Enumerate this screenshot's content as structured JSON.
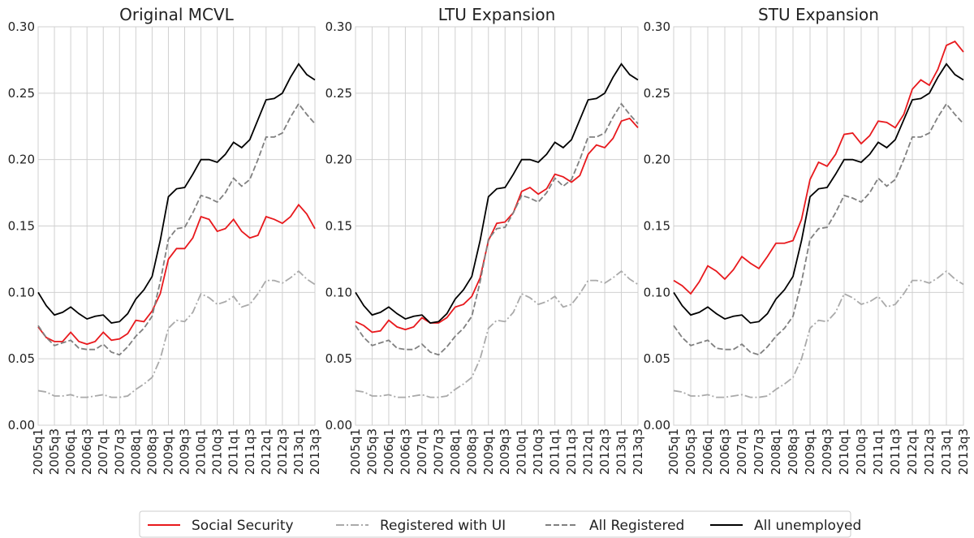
{
  "chart_data": [
    {
      "type": "line",
      "title": "Original MCVL",
      "categories": [
        "2005q1",
        null,
        "2005q3",
        null,
        "2006q1",
        null,
        "2006q3",
        null,
        "2007q1",
        null,
        "2007q3",
        null,
        "2008q1",
        null,
        "2008q3",
        null,
        "2009q1",
        null,
        "2009q3",
        null,
        "2010q1",
        null,
        "2010q3",
        null,
        "2011q1",
        null,
        "2011q3",
        null,
        "2012q1",
        null,
        "2012q3",
        null,
        "2013q1",
        null,
        "2013q3"
      ],
      "ylim": [
        0,
        0.3
      ],
      "yticks": [
        {
          "value": 0,
          "label": "0.00"
        },
        {
          "value": 0.05,
          "label": "0.05"
        },
        {
          "value": 0.1,
          "label": "0.10"
        },
        {
          "value": 0.15,
          "label": "0.15"
        },
        {
          "value": 0.2,
          "label": "0.20"
        },
        {
          "value": 0.25,
          "label": "0.25"
        },
        {
          "value": 0.3,
          "label": "0.30"
        }
      ],
      "grid": true,
      "series": [
        {
          "name": "Social Security",
          "color": "#e8191d",
          "style": "solid",
          "values": [
            0.074,
            0.066,
            0.063,
            0.063,
            0.07,
            0.063,
            0.061,
            0.063,
            0.07,
            0.064,
            0.065,
            0.069,
            0.079,
            0.078,
            0.086,
            0.099,
            0.125,
            0.133,
            0.133,
            0.141,
            0.157,
            0.155,
            0.146,
            0.148,
            0.155,
            0.146,
            0.141,
            0.143,
            0.157,
            0.155,
            0.152,
            0.157,
            0.166,
            0.159,
            0.148
          ]
        },
        {
          "name": "Registered with UI",
          "color": "#aaaaaa",
          "style": "dashdot",
          "values": [
            0.026,
            0.025,
            0.022,
            0.022,
            0.023,
            0.021,
            0.021,
            0.022,
            0.023,
            0.021,
            0.021,
            0.022,
            0.027,
            0.031,
            0.036,
            0.05,
            0.073,
            0.079,
            0.078,
            0.085,
            0.099,
            0.096,
            0.091,
            0.093,
            0.097,
            0.089,
            0.091,
            0.099,
            0.109,
            0.109,
            0.107,
            0.111,
            0.116,
            0.11,
            0.106
          ]
        },
        {
          "name": "All Registered",
          "color": "#808080",
          "style": "dashed",
          "values": [
            0.075,
            0.066,
            0.06,
            0.062,
            0.064,
            0.058,
            0.057,
            0.057,
            0.061,
            0.055,
            0.053,
            0.059,
            0.067,
            0.073,
            0.082,
            0.108,
            0.14,
            0.148,
            0.149,
            0.16,
            0.173,
            0.171,
            0.168,
            0.175,
            0.186,
            0.18,
            0.185,
            0.2,
            0.217,
            0.217,
            0.22,
            0.232,
            0.242,
            0.234,
            0.227
          ]
        },
        {
          "name": "All unemployed",
          "color": "#000000",
          "style": "solid",
          "values": [
            0.1,
            0.09,
            0.083,
            0.085,
            0.089,
            0.084,
            0.08,
            0.082,
            0.083,
            0.077,
            0.078,
            0.084,
            0.095,
            0.102,
            0.112,
            0.139,
            0.172,
            0.178,
            0.179,
            0.189,
            0.2,
            0.2,
            0.198,
            0.204,
            0.213,
            0.209,
            0.215,
            0.23,
            0.245,
            0.246,
            0.25,
            0.262,
            0.272,
            0.264,
            0.26
          ]
        }
      ]
    },
    {
      "type": "line",
      "title": "LTU Expansion",
      "categories": [
        "2005q1",
        null,
        "2005q3",
        null,
        "2006q1",
        null,
        "2006q3",
        null,
        "2007q1",
        null,
        "2007q3",
        null,
        "2008q1",
        null,
        "2008q3",
        null,
        "2009q1",
        null,
        "2009q3",
        null,
        "2010q1",
        null,
        "2010q3",
        null,
        "2011q1",
        null,
        "2011q3",
        null,
        "2012q1",
        null,
        "2012q3",
        null,
        "2013q1",
        null,
        "2013q3"
      ],
      "ylim": [
        0,
        0.3
      ],
      "yticks": [
        {
          "value": 0,
          "label": "0.00"
        },
        {
          "value": 0.05,
          "label": "0.05"
        },
        {
          "value": 0.1,
          "label": "0.10"
        },
        {
          "value": 0.15,
          "label": "0.15"
        },
        {
          "value": 0.2,
          "label": "0.20"
        },
        {
          "value": 0.25,
          "label": "0.25"
        },
        {
          "value": 0.3,
          "label": "0.30"
        }
      ],
      "grid": true,
      "series": [
        {
          "name": "Social Security",
          "color": "#e8191d",
          "style": "solid",
          "values": [
            0.078,
            0.075,
            0.07,
            0.071,
            0.079,
            0.074,
            0.072,
            0.074,
            0.081,
            0.077,
            0.077,
            0.081,
            0.089,
            0.091,
            0.097,
            0.111,
            0.139,
            0.152,
            0.153,
            0.16,
            0.176,
            0.179,
            0.174,
            0.178,
            0.189,
            0.187,
            0.183,
            0.188,
            0.204,
            0.211,
            0.209,
            0.216,
            0.229,
            0.231,
            0.224
          ]
        },
        {
          "name": "Registered with UI",
          "color": "#aaaaaa",
          "style": "dashdot",
          "values": [
            0.026,
            0.025,
            0.022,
            0.022,
            0.023,
            0.021,
            0.021,
            0.022,
            0.023,
            0.021,
            0.021,
            0.022,
            0.027,
            0.031,
            0.036,
            0.05,
            0.073,
            0.079,
            0.078,
            0.085,
            0.099,
            0.096,
            0.091,
            0.093,
            0.097,
            0.089,
            0.091,
            0.099,
            0.109,
            0.109,
            0.107,
            0.111,
            0.116,
            0.11,
            0.106
          ]
        },
        {
          "name": "All Registered",
          "color": "#808080",
          "style": "dashed",
          "values": [
            0.075,
            0.066,
            0.06,
            0.062,
            0.064,
            0.058,
            0.057,
            0.057,
            0.061,
            0.055,
            0.053,
            0.059,
            0.067,
            0.073,
            0.082,
            0.108,
            0.14,
            0.148,
            0.149,
            0.16,
            0.173,
            0.171,
            0.168,
            0.175,
            0.186,
            0.18,
            0.185,
            0.2,
            0.217,
            0.217,
            0.22,
            0.232,
            0.242,
            0.234,
            0.227
          ]
        },
        {
          "name": "All unemployed",
          "color": "#000000",
          "style": "solid",
          "values": [
            0.1,
            0.09,
            0.083,
            0.085,
            0.089,
            0.084,
            0.08,
            0.082,
            0.083,
            0.077,
            0.078,
            0.084,
            0.095,
            0.102,
            0.112,
            0.139,
            0.172,
            0.178,
            0.179,
            0.189,
            0.2,
            0.2,
            0.198,
            0.204,
            0.213,
            0.209,
            0.215,
            0.23,
            0.245,
            0.246,
            0.25,
            0.262,
            0.272,
            0.264,
            0.26
          ]
        }
      ]
    },
    {
      "type": "line",
      "title": "STU Expansion",
      "categories": [
        "2005q1",
        null,
        "2005q3",
        null,
        "2006q1",
        null,
        "2006q3",
        null,
        "2007q1",
        null,
        "2007q3",
        null,
        "2008q1",
        null,
        "2008q3",
        null,
        "2009q1",
        null,
        "2009q3",
        null,
        "2010q1",
        null,
        "2010q3",
        null,
        "2011q1",
        null,
        "2011q3",
        null,
        "2012q1",
        null,
        "2012q3",
        null,
        "2013q1",
        null,
        "2013q3"
      ],
      "ylim": [
        0,
        0.3
      ],
      "yticks": [
        {
          "value": 0,
          "label": "0.00"
        },
        {
          "value": 0.05,
          "label": "0.05"
        },
        {
          "value": 0.1,
          "label": "0.10"
        },
        {
          "value": 0.15,
          "label": "0.15"
        },
        {
          "value": 0.2,
          "label": "0.20"
        },
        {
          "value": 0.25,
          "label": "0.25"
        },
        {
          "value": 0.3,
          "label": "0.30"
        }
      ],
      "grid": true,
      "series": [
        {
          "name": "Social Security",
          "color": "#e8191d",
          "style": "solid",
          "values": [
            0.109,
            0.105,
            0.099,
            0.108,
            0.12,
            0.116,
            0.11,
            0.117,
            0.127,
            0.122,
            0.118,
            0.127,
            0.137,
            0.137,
            0.139,
            0.155,
            0.185,
            0.198,
            0.195,
            0.204,
            0.219,
            0.22,
            0.212,
            0.218,
            0.229,
            0.228,
            0.224,
            0.234,
            0.253,
            0.26,
            0.256,
            0.268,
            0.286,
            0.289,
            0.281
          ]
        },
        {
          "name": "Registered with UI",
          "color": "#aaaaaa",
          "style": "dashdot",
          "values": [
            0.026,
            0.025,
            0.022,
            0.022,
            0.023,
            0.021,
            0.021,
            0.022,
            0.023,
            0.021,
            0.021,
            0.022,
            0.027,
            0.031,
            0.036,
            0.05,
            0.073,
            0.079,
            0.078,
            0.085,
            0.099,
            0.096,
            0.091,
            0.093,
            0.097,
            0.089,
            0.091,
            0.099,
            0.109,
            0.109,
            0.107,
            0.111,
            0.116,
            0.11,
            0.106
          ]
        },
        {
          "name": "All Registered",
          "color": "#808080",
          "style": "dashed",
          "values": [
            0.075,
            0.066,
            0.06,
            0.062,
            0.064,
            0.058,
            0.057,
            0.057,
            0.061,
            0.055,
            0.053,
            0.059,
            0.067,
            0.073,
            0.082,
            0.108,
            0.14,
            0.148,
            0.149,
            0.16,
            0.173,
            0.171,
            0.168,
            0.175,
            0.186,
            0.18,
            0.185,
            0.2,
            0.217,
            0.217,
            0.22,
            0.232,
            0.242,
            0.234,
            0.227
          ]
        },
        {
          "name": "All unemployed",
          "color": "#000000",
          "style": "solid",
          "values": [
            0.1,
            0.09,
            0.083,
            0.085,
            0.089,
            0.084,
            0.08,
            0.082,
            0.083,
            0.077,
            0.078,
            0.084,
            0.095,
            0.102,
            0.112,
            0.139,
            0.172,
            0.178,
            0.179,
            0.189,
            0.2,
            0.2,
            0.198,
            0.204,
            0.213,
            0.209,
            0.215,
            0.23,
            0.245,
            0.246,
            0.25,
            0.262,
            0.272,
            0.264,
            0.26
          ]
        }
      ]
    }
  ]
}
